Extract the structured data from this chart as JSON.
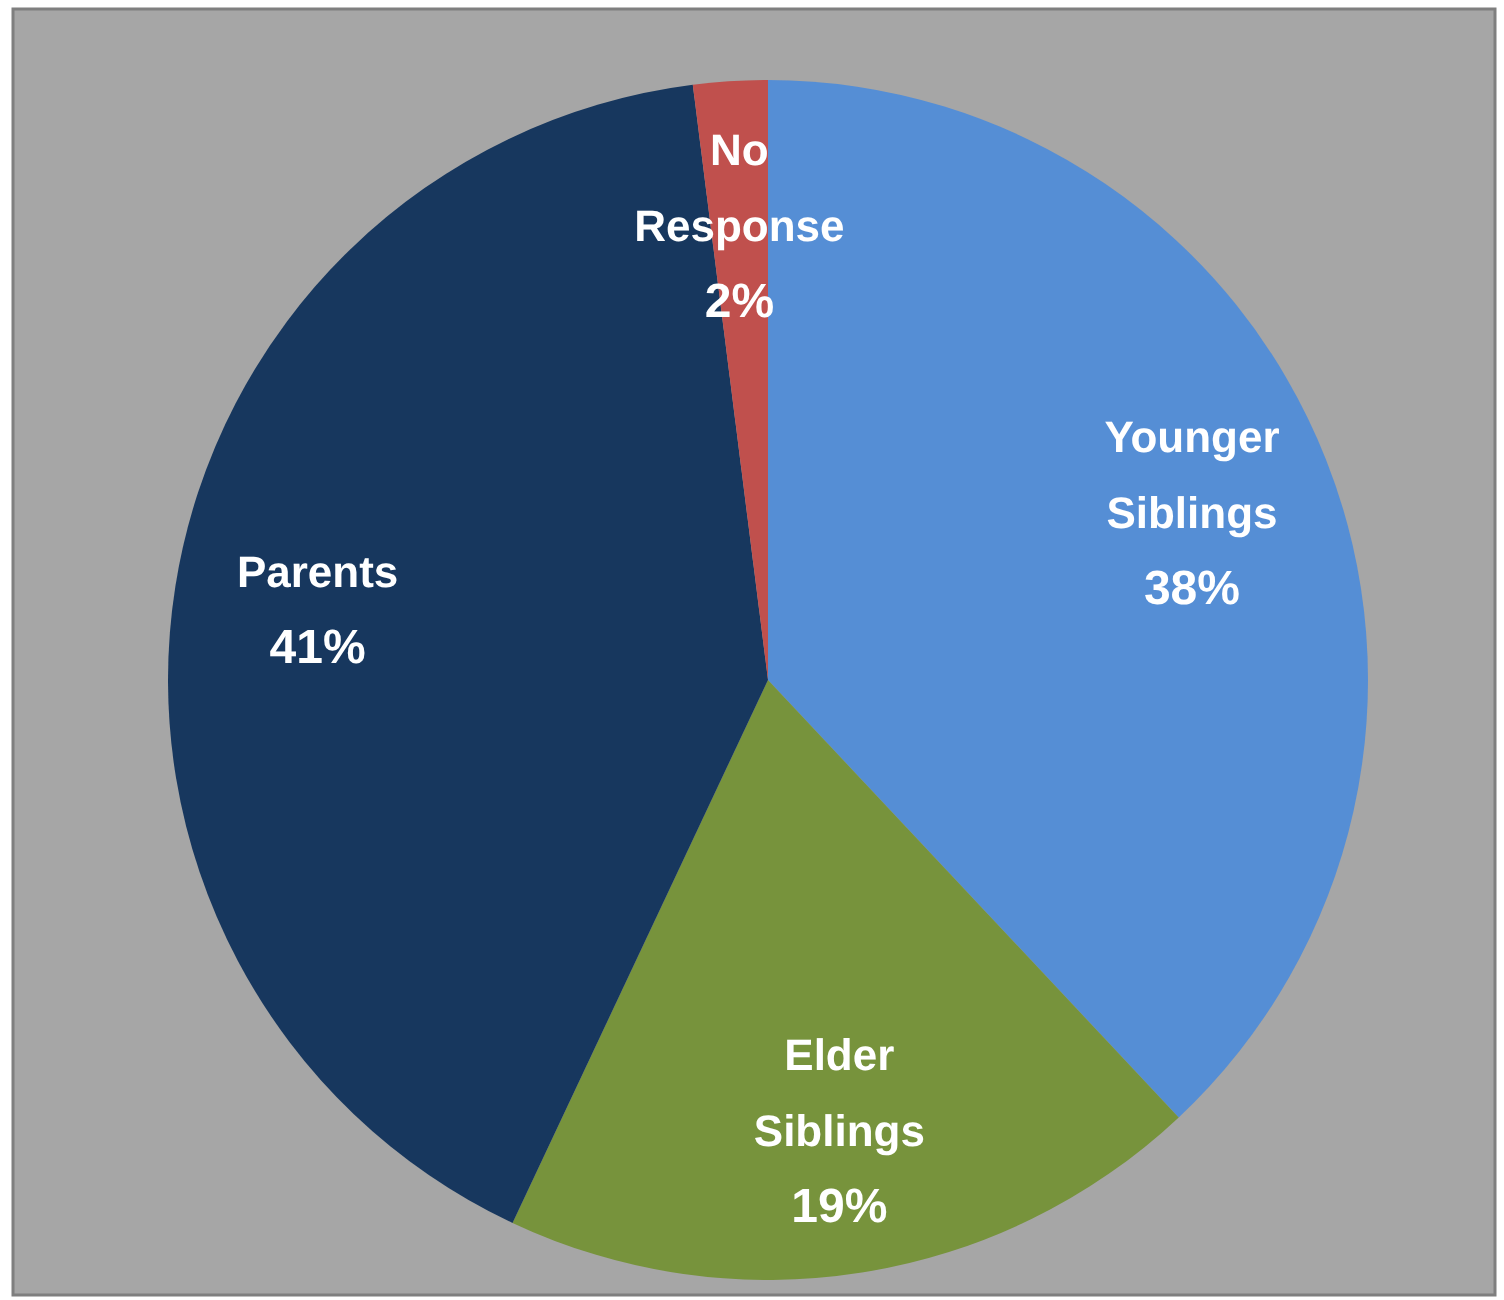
{
  "chart_data": {
    "type": "pie",
    "categories": [
      "Younger Siblings",
      "Elder Siblings",
      "Parents",
      "No Response"
    ],
    "values": [
      38,
      19,
      41,
      2
    ],
    "colors": [
      "#558ed5",
      "#77933c",
      "#17375e",
      "#c0504d"
    ],
    "value_labels": [
      "38%",
      "19%",
      "41%",
      "2%"
    ],
    "legend": false
  }
}
